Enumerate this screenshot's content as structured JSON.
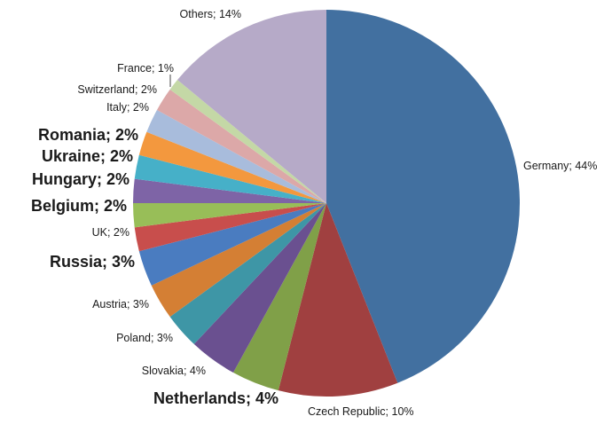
{
  "chart_data": {
    "type": "pie",
    "title": "",
    "legend": "none",
    "slices": [
      {
        "label": "Germany; 44%",
        "name": "Germany",
        "value": 44,
        "color": "#4270A0"
      },
      {
        "label": "Czech Republic; 10%",
        "name": "Czech Republic",
        "value": 10,
        "color": "#A04040"
      },
      {
        "label": "Netherlands; 4%",
        "name": "Netherlands",
        "value": 4,
        "color": "#80A048"
      },
      {
        "label": "Slovakia; 4%",
        "name": "Slovakia",
        "value": 4,
        "color": "#6A5090"
      },
      {
        "label": "Poland; 3%",
        "name": "Poland",
        "value": 3,
        "color": "#3E96A6"
      },
      {
        "label": "Austria; 3%",
        "name": "Austria",
        "value": 3,
        "color": "#D47F34"
      },
      {
        "label": "Russia; 3%",
        "name": "Russia",
        "value": 3,
        "color": "#4A7CC0"
      },
      {
        "label": "UK; 2%",
        "name": "UK",
        "value": 2,
        "color": "#C84E4C"
      },
      {
        "label": "Belgium; 2%",
        "name": "Belgium",
        "value": 2,
        "color": "#98BE58"
      },
      {
        "label": "Hungary; 2%",
        "name": "Hungary",
        "value": 2,
        "color": "#7E64A6"
      },
      {
        "label": "Ukraine; 2%",
        "name": "Ukraine",
        "value": 2,
        "color": "#46B0C8"
      },
      {
        "label": "Romania; 2%",
        "name": "Romania",
        "value": 2,
        "color": "#F3983E"
      },
      {
        "label": "Italy; 2%",
        "name": "Italy",
        "value": 2,
        "color": "#A8BCDC"
      },
      {
        "label": "Switzerland; 2%",
        "name": "Switzerland",
        "value": 2,
        "color": "#DCA8A8"
      },
      {
        "label": "France; 1%",
        "name": "France",
        "value": 1,
        "color": "#C4D8A6"
      },
      {
        "label": "Others; 14%",
        "name": "Others",
        "value": 14,
        "color": "#B6AAC8"
      }
    ]
  }
}
